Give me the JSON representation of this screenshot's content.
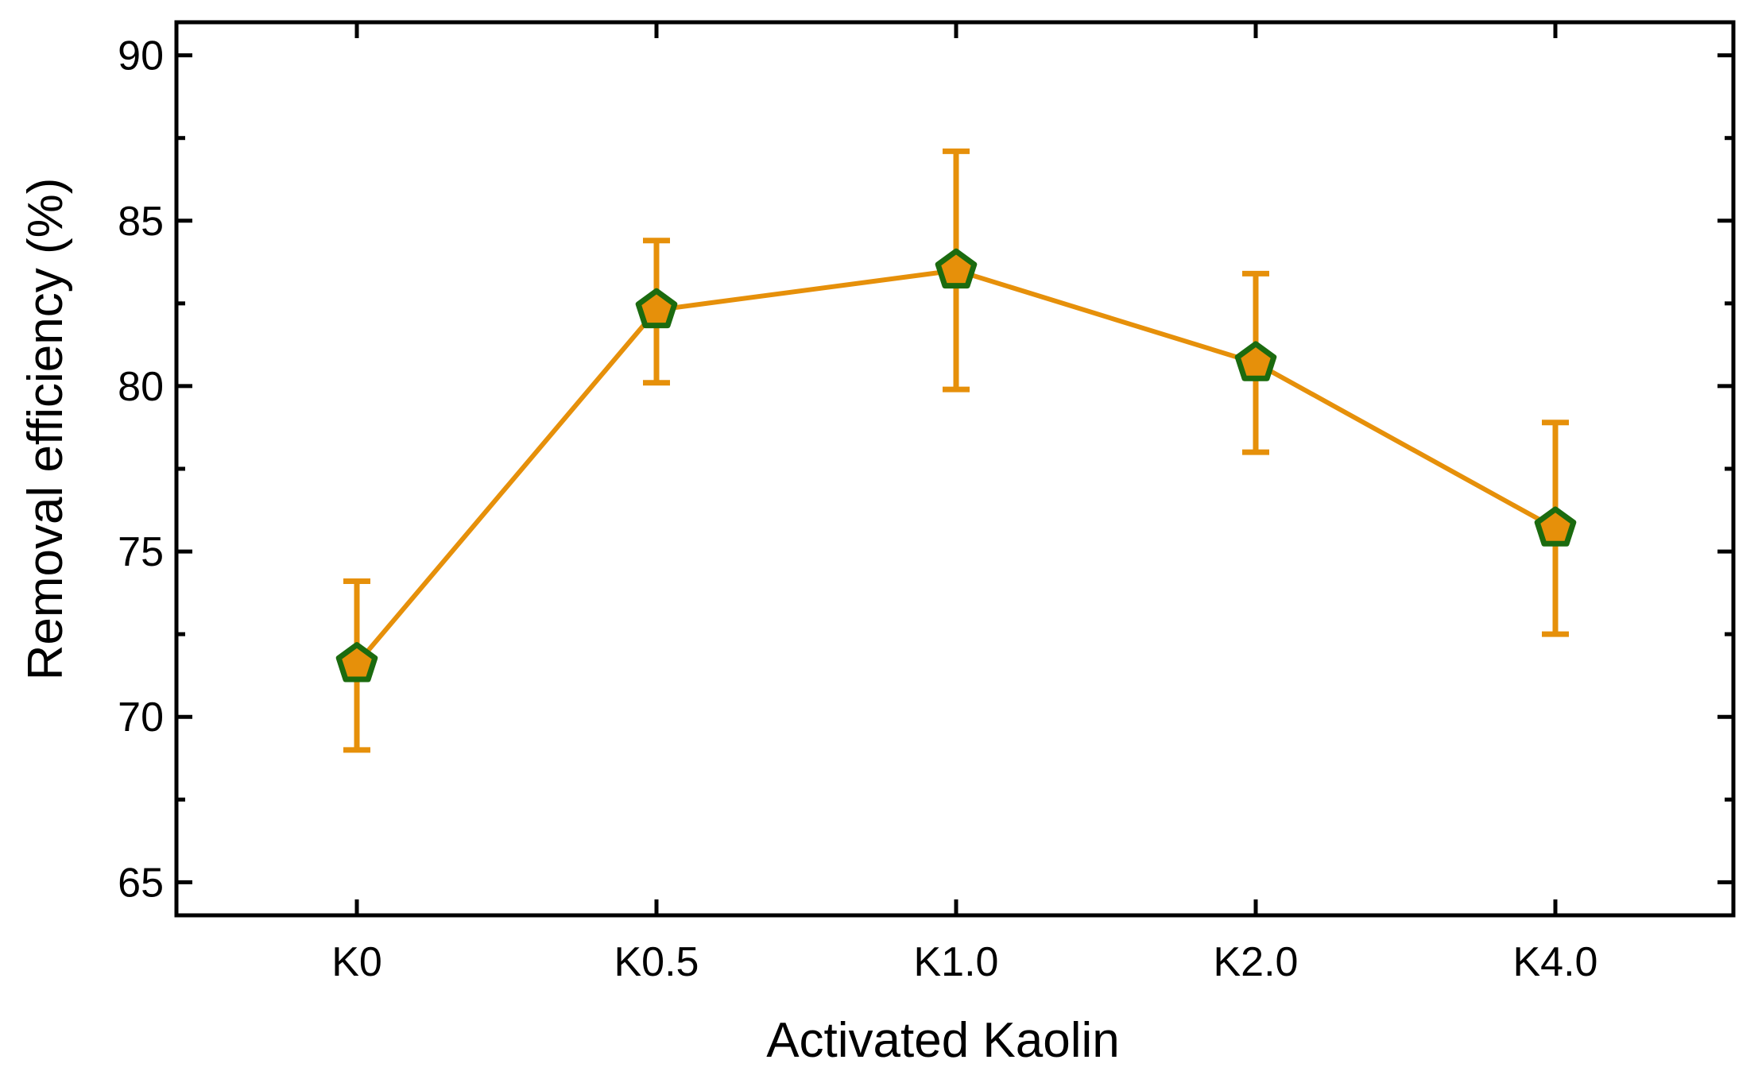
{
  "chart_data": {
    "type": "line",
    "title": "",
    "xlabel": "Activated Kaolin",
    "ylabel": "Removal efficiency (%)",
    "categories": [
      "K0",
      "K0.5",
      "K1.0",
      "K2.0",
      "K4.0"
    ],
    "ylim": [
      64,
      91
    ],
    "yticks": [
      65,
      70,
      75,
      80,
      85,
      90
    ],
    "yticks_minor": [
      67.5,
      72.5,
      77.5,
      82.5,
      87.5
    ],
    "grid": false,
    "legend": "none",
    "series": [
      {
        "name": "Removal efficiency",
        "values": [
          71.6,
          82.3,
          83.5,
          80.7,
          75.7
        ],
        "error_low": [
          69.0,
          80.1,
          79.9,
          78.0,
          72.5
        ],
        "error_high": [
          74.1,
          84.4,
          87.1,
          83.4,
          78.9
        ],
        "line_color": "#E6900A",
        "marker": "pentagon",
        "marker_fill": "#E6900A",
        "marker_edge": "#1B6B0F"
      }
    ]
  }
}
